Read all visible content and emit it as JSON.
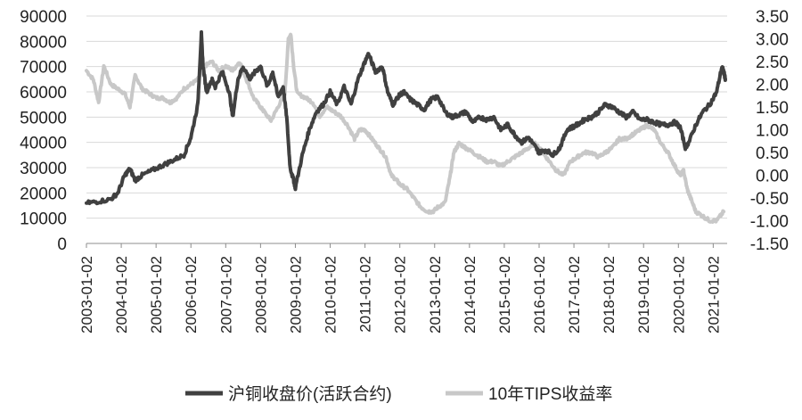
{
  "chart_data": {
    "type": "line",
    "title": "",
    "xlabel": "",
    "ylabel_left": "",
    "ylabel_right": "",
    "ylim_left": [
      0,
      90000
    ],
    "ylim_right": [
      -1.5,
      3.5
    ],
    "yticks_left": [
      "90000",
      "80000",
      "70000",
      "60000",
      "50000",
      "40000",
      "30000",
      "20000",
      "10000",
      "0"
    ],
    "yticks_right": [
      "3.50",
      "3.00",
      "2.50",
      "2.00",
      "1.50",
      "1.00",
      "0.50",
      "0.00",
      "-0.50",
      "-1.00",
      "-1.50"
    ],
    "xticks": [
      "2003-01-02",
      "2004-01-02",
      "2005-01-02",
      "2006-01-02",
      "2007-01-02",
      "2008-01-02",
      "2009-01-02",
      "2010-01-02",
      "2011-01-02",
      "2012-01-02",
      "2013-01-02",
      "2014-01-02",
      "2015-01-02",
      "2016-01-02",
      "2017-01-02",
      "2018-01-02",
      "2019-01-02",
      "2020-01-02",
      "2021-01-02"
    ],
    "grid": "horizontal",
    "legend_position": "bottom",
    "series": [
      {
        "name": "沪铜收盘价(活跃合约)",
        "axis": "left",
        "color": "#404040",
        "x": [
          2003.0,
          2003.3,
          2003.7,
          2003.9,
          2004.1,
          2004.25,
          2004.4,
          2004.6,
          2004.9,
          2005.2,
          2005.5,
          2005.8,
          2006.0,
          2006.2,
          2006.3,
          2006.35,
          2006.45,
          2006.6,
          2006.7,
          2006.9,
          2007.1,
          2007.2,
          2007.35,
          2007.5,
          2007.7,
          2007.85,
          2008.0,
          2008.2,
          2008.35,
          2008.5,
          2008.65,
          2008.75,
          2008.85,
          2008.95,
          2009.0,
          2009.2,
          2009.4,
          2009.6,
          2009.8,
          2010.0,
          2010.2,
          2010.4,
          2010.6,
          2010.8,
          2011.0,
          2011.1,
          2011.3,
          2011.5,
          2011.65,
          2011.8,
          2011.95,
          2012.1,
          2012.3,
          2012.5,
          2012.7,
          2012.9,
          2013.1,
          2013.3,
          2013.5,
          2013.7,
          2013.9,
          2014.1,
          2014.3,
          2014.5,
          2014.7,
          2014.9,
          2015.1,
          2015.3,
          2015.5,
          2015.7,
          2015.9,
          2016.0,
          2016.2,
          2016.4,
          2016.6,
          2016.8,
          2016.95,
          2017.1,
          2017.3,
          2017.5,
          2017.7,
          2017.9,
          2018.1,
          2018.3,
          2018.5,
          2018.7,
          2018.9,
          2019.1,
          2019.3,
          2019.5,
          2019.7,
          2019.9,
          2020.05,
          2020.2,
          2020.3,
          2020.5,
          2020.7,
          2020.9,
          2021.1,
          2021.25,
          2021.3,
          2021.35
        ],
        "values": [
          16000,
          16500,
          17500,
          20000,
          27000,
          29500,
          25000,
          27000,
          29000,
          31000,
          33000,
          35000,
          42000,
          55000,
          83000,
          70000,
          60000,
          65000,
          62000,
          68000,
          60000,
          50000,
          65000,
          70000,
          65000,
          68000,
          70000,
          62000,
          68000,
          58000,
          62000,
          50000,
          30000,
          25000,
          22000,
          35000,
          45000,
          52000,
          55000,
          60000,
          55000,
          62000,
          55000,
          65000,
          72000,
          75000,
          68000,
          70000,
          60000,
          55000,
          58000,
          60000,
          57000,
          55000,
          53000,
          57000,
          58000,
          52000,
          50000,
          51000,
          52000,
          48000,
          50000,
          49000,
          50000,
          45000,
          47000,
          43000,
          40000,
          42000,
          38000,
          36000,
          37000,
          35000,
          38000,
          45000,
          46000,
          47000,
          49000,
          50000,
          52000,
          55000,
          54000,
          52000,
          50000,
          52000,
          49000,
          49000,
          48000,
          47000,
          47000,
          48000,
          46000,
          38000,
          40000,
          47000,
          52000,
          55000,
          60000,
          70000,
          68000,
          65000
        ]
      },
      {
        "name": "10年TIPS收益率",
        "axis": "right",
        "color": "#c8c8c8",
        "x": [
          2003.0,
          2003.2,
          2003.35,
          2003.5,
          2003.7,
          2003.9,
          2004.1,
          2004.25,
          2004.4,
          2004.6,
          2004.8,
          2005.0,
          2005.2,
          2005.4,
          2005.6,
          2005.8,
          2006.0,
          2006.2,
          2006.4,
          2006.6,
          2006.8,
          2007.0,
          2007.2,
          2007.4,
          2007.6,
          2007.8,
          2008.0,
          2008.1,
          2008.3,
          2008.5,
          2008.7,
          2008.8,
          2008.87,
          2008.95,
          2009.05,
          2009.3,
          2009.5,
          2009.7,
          2009.9,
          2010.1,
          2010.3,
          2010.5,
          2010.7,
          2010.85,
          2011.0,
          2011.2,
          2011.4,
          2011.6,
          2011.75,
          2011.9,
          2012.0,
          2012.2,
          2012.4,
          2012.6,
          2012.8,
          2012.95,
          2013.1,
          2013.3,
          2013.45,
          2013.55,
          2013.7,
          2013.9,
          2014.1,
          2014.3,
          2014.5,
          2014.7,
          2014.9,
          2015.1,
          2015.3,
          2015.5,
          2015.7,
          2015.9,
          2016.1,
          2016.3,
          2016.5,
          2016.7,
          2016.9,
          2017.1,
          2017.3,
          2017.5,
          2017.7,
          2017.9,
          2018.1,
          2018.3,
          2018.5,
          2018.7,
          2018.9,
          2019.1,
          2019.3,
          2019.5,
          2019.7,
          2019.9,
          2020.05,
          2020.15,
          2020.25,
          2020.35,
          2020.5,
          2020.7,
          2020.9,
          2021.1,
          2021.3
        ],
        "values": [
          2.3,
          2.1,
          1.6,
          2.4,
          2.0,
          1.9,
          1.8,
          1.5,
          2.2,
          1.9,
          1.8,
          1.7,
          1.7,
          1.6,
          1.7,
          1.9,
          2.0,
          2.1,
          2.4,
          2.5,
          2.3,
          2.4,
          2.3,
          2.5,
          2.1,
          1.7,
          1.5,
          1.4,
          1.2,
          1.5,
          1.8,
          3.0,
          3.1,
          2.4,
          1.8,
          1.7,
          1.6,
          1.3,
          1.5,
          1.4,
          1.3,
          1.1,
          0.8,
          1.0,
          1.0,
          0.8,
          0.6,
          0.4,
          0.0,
          -0.1,
          -0.2,
          -0.3,
          -0.5,
          -0.7,
          -0.8,
          -0.8,
          -0.7,
          -0.6,
          0.0,
          0.5,
          0.7,
          0.6,
          0.5,
          0.4,
          0.3,
          0.3,
          0.2,
          0.3,
          0.4,
          0.5,
          0.6,
          0.7,
          0.5,
          0.3,
          0.1,
          0.0,
          0.3,
          0.4,
          0.5,
          0.5,
          0.4,
          0.5,
          0.6,
          0.8,
          0.8,
          0.9,
          1.0,
          1.1,
          1.0,
          0.7,
          0.5,
          0.2,
          0.0,
          0.1,
          -0.3,
          -0.5,
          -0.8,
          -0.9,
          -1.0,
          -1.0,
          -0.8
        ]
      }
    ]
  }
}
